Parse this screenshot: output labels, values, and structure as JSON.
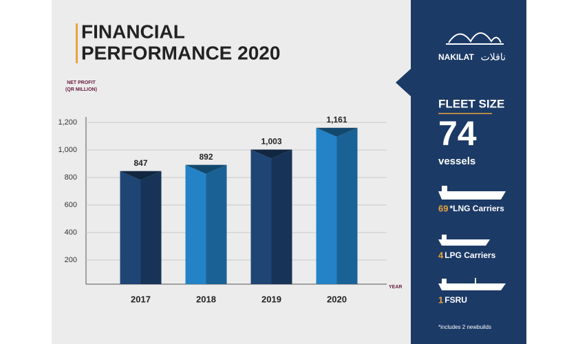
{
  "chart_data": {
    "type": "bar3d",
    "title": [
      "FINANCIAL",
      "PERFORMANCE 2020"
    ],
    "ylabel": [
      "NET PROFIT",
      "(QR MILLION)"
    ],
    "xlabel": "YEAR",
    "categories": [
      "2017",
      "2018",
      "2019",
      "2020"
    ],
    "values": [
      847,
      892,
      1003,
      1161
    ],
    "value_labels": [
      "847",
      "892",
      "1,003",
      "1,161"
    ],
    "colors": [
      "#1f4575",
      "#2383c6",
      "#1f4575",
      "#2383c6"
    ],
    "ylim": [
      0,
      1250
    ],
    "yticks": [
      200,
      400,
      600,
      800,
      {
        "value": 1000,
        "label": "1,000"
      },
      {
        "value": 1200,
        "label": "1,200"
      }
    ],
    "grid": true
  },
  "panel": {
    "brand": "NAKILAT",
    "brand_arabic": "ناقلات",
    "heading": "FLEET SIZE",
    "fleet": "74",
    "unit": "vessels",
    "items": [
      {
        "count": 69,
        "label": "*LNG Carriers"
      },
      {
        "count": 4,
        "label": "LPG Carriers"
      },
      {
        "count": 1,
        "label": "FSRU"
      }
    ],
    "note": "*includes 2 newbuilds"
  }
}
